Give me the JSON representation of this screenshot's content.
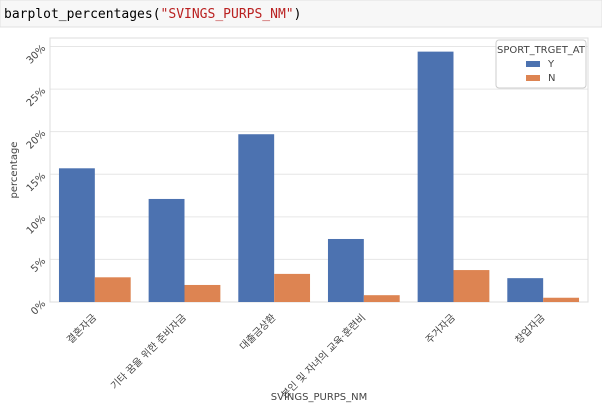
{
  "code": {
    "function": "barplot_percentages(",
    "argument": "\"SVINGS_PURPS_NM\"",
    "close": ")"
  },
  "chart_data": {
    "type": "bar",
    "categories": [
      "결혼자금",
      "기타 꿈을 위한 준비자금",
      "대출금상환",
      "본인 및 자녀의 교육·훈련비",
      "주거자금",
      "창업자금"
    ],
    "series": [
      {
        "name": "Y",
        "color": "#4c72b0",
        "values": [
          15.7,
          12.1,
          19.7,
          7.4,
          29.4,
          2.8
        ]
      },
      {
        "name": "N",
        "color": "#dd8452",
        "values": [
          2.9,
          2.0,
          3.3,
          0.8,
          3.75,
          0.5
        ]
      }
    ],
    "xlabel": "SVINGS_PURPS_NM",
    "ylabel": "percentage",
    "legend_title": "SPORT_TRGET_AT",
    "legend": "upper right",
    "ylim": [
      0,
      31
    ],
    "yticks": [
      {
        "value": 0,
        "label": "0%"
      },
      {
        "value": 5,
        "label": "5%"
      },
      {
        "value": 10,
        "label": "10%"
      },
      {
        "value": 15,
        "label": "15%"
      },
      {
        "value": 20,
        "label": "20%"
      },
      {
        "value": 25,
        "label": "25%"
      },
      {
        "value": 30,
        "label": "30%"
      }
    ],
    "grid": true
  }
}
